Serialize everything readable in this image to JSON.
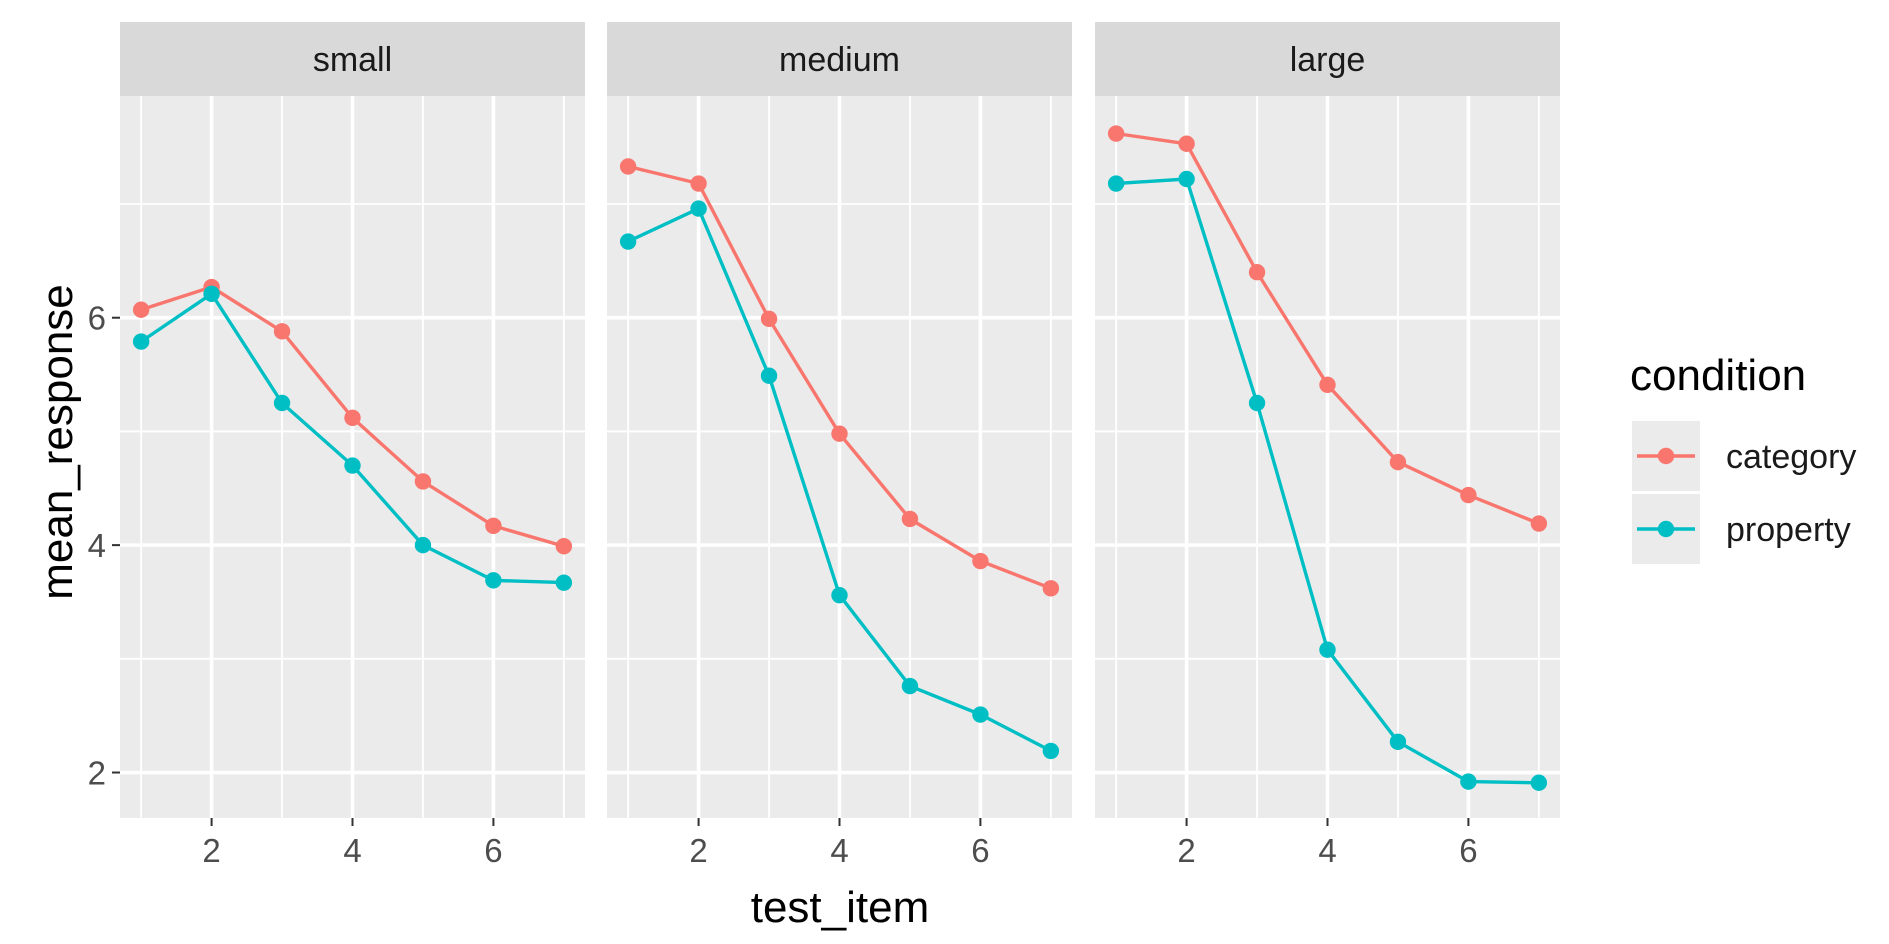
{
  "chart_data": {
    "type": "line",
    "facet_label_style": "strip-top",
    "panels": [
      "small",
      "medium",
      "large"
    ],
    "x": [
      1,
      2,
      3,
      4,
      5,
      6,
      7
    ],
    "xlabel": "test_item",
    "ylabel": "mean_response",
    "xlim": [
      0.7,
      7.3
    ],
    "ylim": [
      1.6,
      7.95
    ],
    "x_ticks": [
      2,
      4,
      6
    ],
    "y_ticks": [
      2,
      4,
      6
    ],
    "y_minor_ticks": [
      3,
      5,
      7
    ],
    "grid": true,
    "markers": true,
    "legend": {
      "title": "condition",
      "position": "right",
      "entries": [
        "category",
        "property"
      ]
    },
    "series": [
      {
        "panel": "small",
        "name": "category",
        "color": "#F8766D",
        "values": [
          6.07,
          6.27,
          5.88,
          5.12,
          4.56,
          4.17,
          3.99
        ]
      },
      {
        "panel": "small",
        "name": "property",
        "color": "#00BFC4",
        "values": [
          5.79,
          6.21,
          5.25,
          4.7,
          4.0,
          3.69,
          3.67
        ]
      },
      {
        "panel": "medium",
        "name": "category",
        "color": "#F8766D",
        "values": [
          7.33,
          7.18,
          5.99,
          4.98,
          4.23,
          3.86,
          3.62
        ]
      },
      {
        "panel": "medium",
        "name": "property",
        "color": "#00BFC4",
        "values": [
          6.67,
          6.96,
          5.49,
          3.56,
          2.76,
          2.51,
          2.19
        ]
      },
      {
        "panel": "large",
        "name": "category",
        "color": "#F8766D",
        "values": [
          7.62,
          7.53,
          6.4,
          5.41,
          4.73,
          4.44,
          4.19
        ]
      },
      {
        "panel": "large",
        "name": "property",
        "color": "#00BFC4",
        "values": [
          7.18,
          7.22,
          5.25,
          3.08,
          2.27,
          1.92,
          1.91
        ]
      }
    ]
  }
}
